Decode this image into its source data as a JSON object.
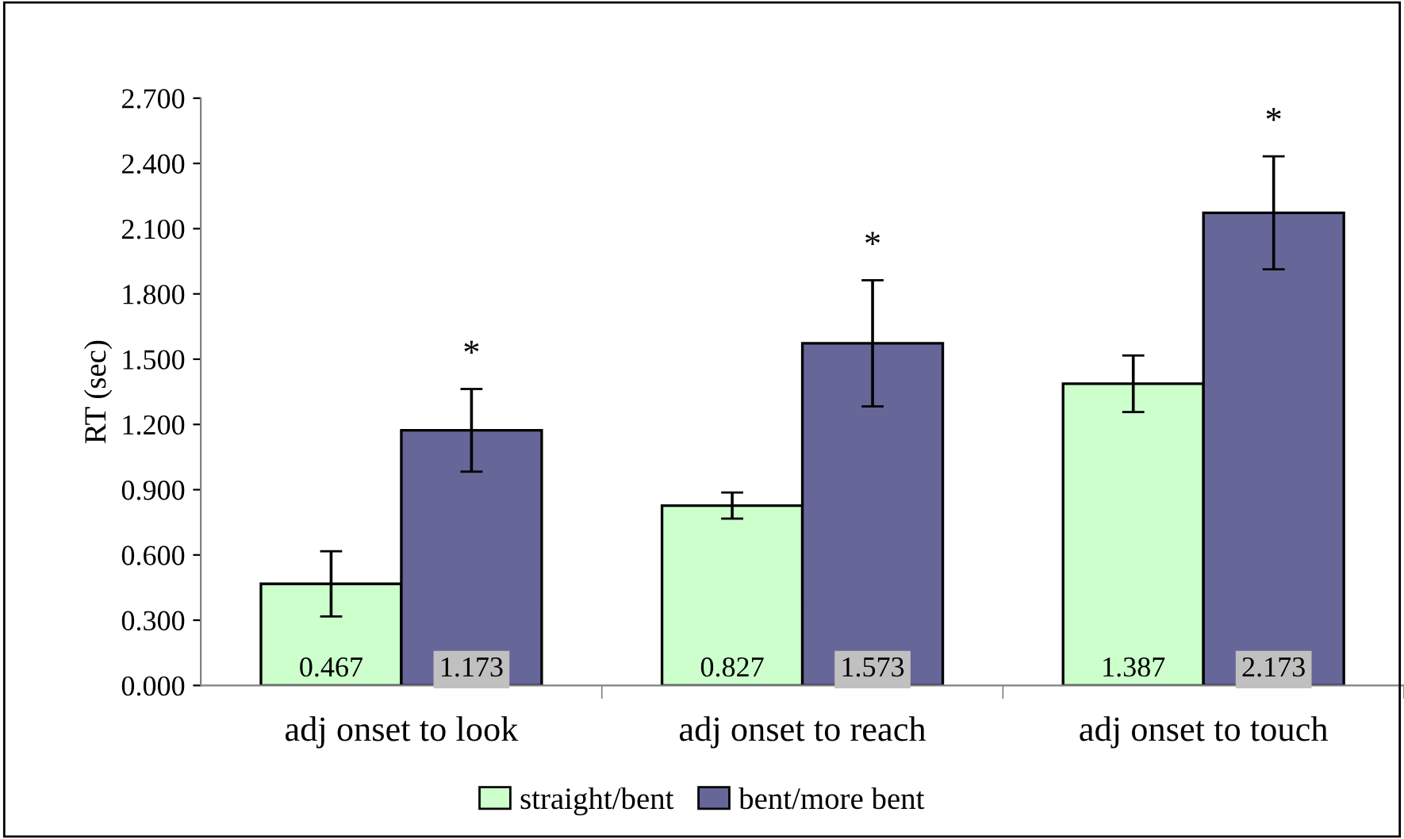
{
  "chart_data": {
    "type": "bar",
    "categories": [
      "adj onset to look",
      "adj onset to reach",
      "adj onset to touch"
    ],
    "ylabel": "RT (sec)",
    "series": [
      {
        "name": "straight/bent",
        "color": "#ccffcc",
        "values": [
          0.467,
          0.827,
          1.387
        ],
        "errors": [
          0.15,
          0.06,
          0.13
        ]
      },
      {
        "name": "bent/more bent",
        "color": "#666699",
        "values": [
          1.173,
          1.573,
          2.173
        ],
        "errors": [
          0.19,
          0.29,
          0.26
        ]
      }
    ],
    "ylim": [
      0,
      2.7
    ],
    "yticks": [
      {
        "value": 0,
        "label": "0.000"
      },
      {
        "value": 0.3,
        "label": "0.300"
      },
      {
        "value": 0.6,
        "label": "0.600"
      },
      {
        "value": 0.9,
        "label": "0.900"
      },
      {
        "value": 1.2,
        "label": "1.200"
      },
      {
        "value": 1.5,
        "label": "1.500"
      },
      {
        "value": 1.8,
        "label": "1.800"
      },
      {
        "value": 2.1,
        "label": "2.100"
      },
      {
        "value": 2.4,
        "label": "2.400"
      },
      {
        "value": 2.7,
        "label": "2.700"
      }
    ],
    "annotations": [
      "*",
      "*",
      "*"
    ],
    "data_labels": true,
    "grid": false,
    "legend": "bottom"
  }
}
